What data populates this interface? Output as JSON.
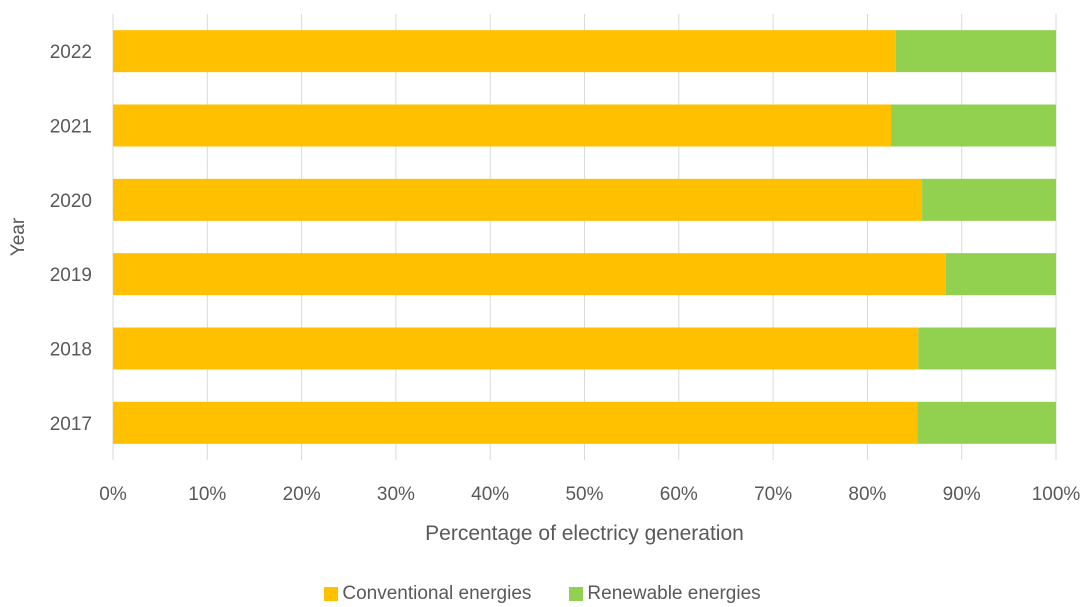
{
  "chart_data": {
    "type": "bar",
    "orientation": "horizontal",
    "stacked": true,
    "percent_scale": true,
    "categories": [
      "2017",
      "2018",
      "2019",
      "2020",
      "2021",
      "2022"
    ],
    "series": [
      {
        "name": "Conventional energies",
        "color": "#FFC000",
        "values": [
          85.3,
          85.4,
          88.3,
          85.8,
          82.5,
          83.0
        ]
      },
      {
        "name": "Renewable energies",
        "color": "#92D050",
        "values": [
          14.7,
          14.6,
          11.7,
          14.2,
          17.5,
          17.0
        ]
      }
    ],
    "xlabel": "Percentage of electricy generation",
    "ylabel": "Year",
    "xlim": [
      0,
      100
    ],
    "x_ticks": [
      "0%",
      "10%",
      "20%",
      "30%",
      "40%",
      "50%",
      "60%",
      "70%",
      "80%",
      "90%",
      "100%"
    ],
    "grid": "vertical",
    "legend_position": "bottom"
  }
}
